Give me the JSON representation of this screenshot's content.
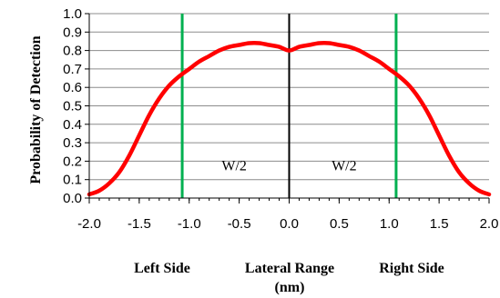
{
  "chart_data": {
    "type": "line",
    "title": "",
    "ylabel": "Probability of Detection",
    "xlabel_left": "Left Side",
    "xlabel_center": "Lateral Range",
    "xlabel_units": "(nm)",
    "xlabel_right": "Right Side",
    "xlim": [
      -2.0,
      2.0
    ],
    "ylim": [
      0.0,
      1.0
    ],
    "grid": true,
    "x_ticks": [
      "-2.0",
      "-1.5",
      "-1.0",
      "-0.5",
      "0.0",
      "0.5",
      "1.0",
      "1.5",
      "2.0"
    ],
    "y_ticks": [
      "0.0",
      "0.1",
      "0.2",
      "0.3",
      "0.4",
      "0.5",
      "0.6",
      "0.7",
      "0.8",
      "0.9",
      "1.0"
    ],
    "series": [
      {
        "color": "#ff0000",
        "x": [
          -2.0,
          -1.9,
          -1.8,
          -1.7,
          -1.6,
          -1.5,
          -1.4,
          -1.3,
          -1.2,
          -1.1,
          -1.0,
          -0.9,
          -0.8,
          -0.7,
          -0.6,
          -0.5,
          -0.4,
          -0.3,
          -0.2,
          -0.1,
          0.0,
          0.1,
          0.2,
          0.3,
          0.4,
          0.5,
          0.6,
          0.7,
          0.8,
          0.9,
          1.0,
          1.1,
          1.2,
          1.3,
          1.4,
          1.5,
          1.6,
          1.7,
          1.8,
          1.9,
          2.0
        ],
        "y": [
          0.02,
          0.04,
          0.08,
          0.14,
          0.23,
          0.34,
          0.45,
          0.54,
          0.61,
          0.66,
          0.7,
          0.74,
          0.77,
          0.8,
          0.82,
          0.83,
          0.84,
          0.84,
          0.83,
          0.82,
          0.8,
          0.82,
          0.83,
          0.84,
          0.84,
          0.83,
          0.82,
          0.8,
          0.77,
          0.74,
          0.7,
          0.66,
          0.61,
          0.54,
          0.45,
          0.34,
          0.23,
          0.14,
          0.08,
          0.04,
          0.02
        ]
      }
    ],
    "vertical_lines": [
      {
        "x": -1.07,
        "color": "#00b050"
      },
      {
        "x": 0.0,
        "color": "#000000"
      },
      {
        "x": 1.07,
        "color": "#00b050"
      }
    ],
    "annotations": [
      {
        "text": "W/2",
        "x": -0.55,
        "y": 0.18
      },
      {
        "text": "W/2",
        "x": 0.55,
        "y": 0.18
      }
    ]
  }
}
